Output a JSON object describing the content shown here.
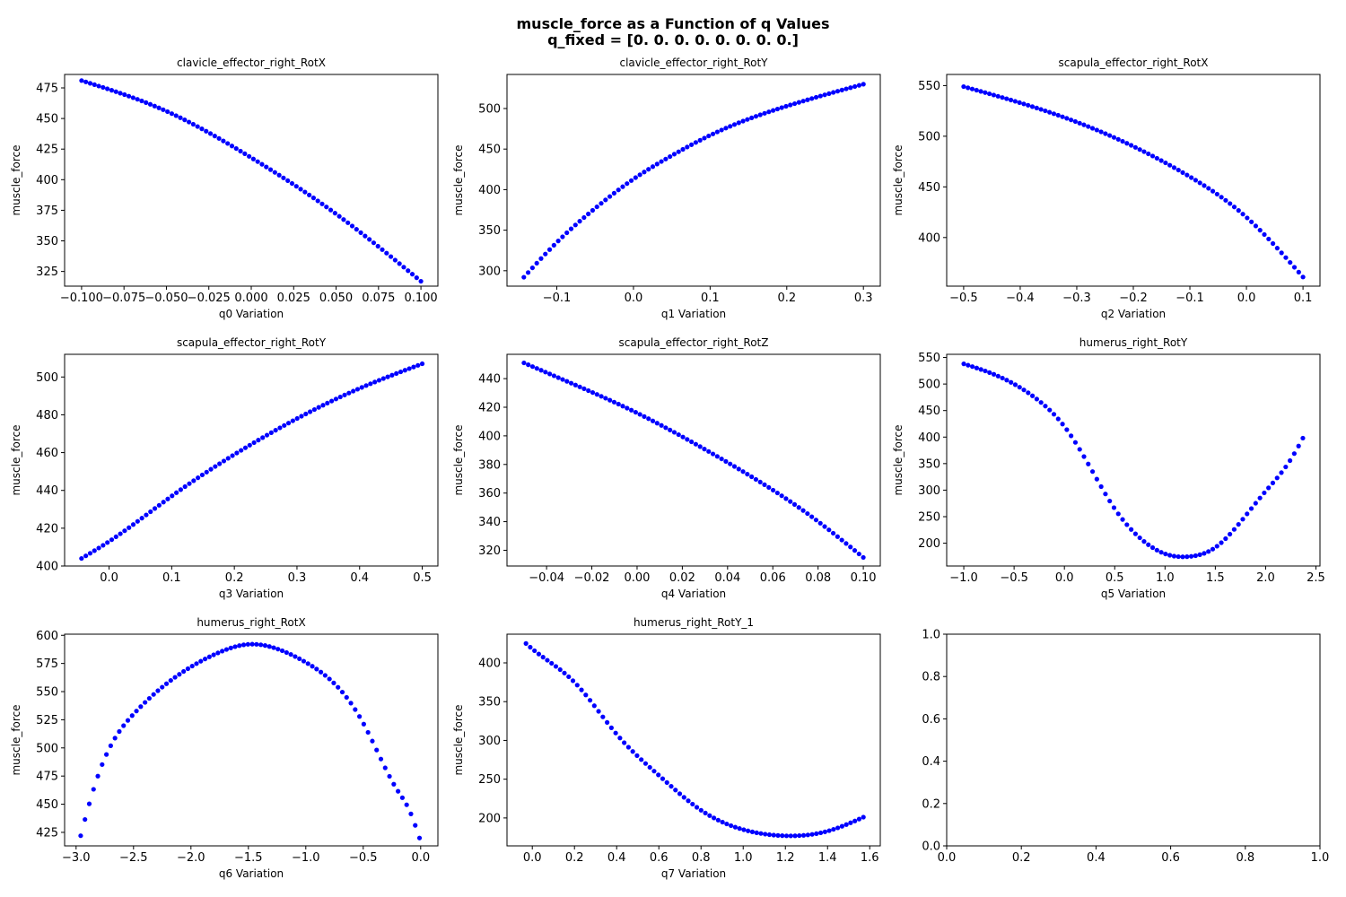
{
  "figure": {
    "title": "muscle_force as a Function of q Values",
    "subtitle": "q_fixed = [0. 0. 0. 0. 0. 0. 0. 0.]",
    "marker_color": "#0000ff"
  },
  "chart_data": [
    {
      "type": "scatter",
      "title": "clavicle_effector_right_RotX",
      "xlabel": "q0 Variation",
      "ylabel": "muscle_force",
      "xlim": [
        -0.11,
        0.11
      ],
      "ylim": [
        313,
        486
      ],
      "xticks": [
        -0.1,
        -0.075,
        -0.05,
        -0.025,
        0.0,
        0.025,
        0.05,
        0.075,
        0.1
      ],
      "xtick_labels": [
        "−0.100",
        "−0.075",
        "−0.050",
        "−0.025",
        "0.000",
        "0.025",
        "0.050",
        "0.075",
        "0.100"
      ],
      "yticks": [
        325,
        350,
        375,
        400,
        425,
        450,
        475
      ],
      "ytick_labels": [
        "325",
        "350",
        "375",
        "400",
        "425",
        "450",
        "475"
      ],
      "curve": {
        "x_range": [
          -0.1,
          0.1
        ],
        "n_points": 80,
        "x": [
          -0.1,
          -0.05,
          0.0,
          0.05,
          0.1
        ],
        "y": [
          481,
          456,
          418,
          372,
          317
        ]
      }
    },
    {
      "type": "scatter",
      "title": "clavicle_effector_right_RotY",
      "xlabel": "q1 Variation",
      "ylabel": "muscle_force",
      "xlim": [
        -0.165,
        0.322
      ],
      "ylim": [
        281,
        542
      ],
      "xticks": [
        -0.1,
        0.0,
        0.1,
        0.2,
        0.3
      ],
      "xtick_labels": [
        "−0.1",
        "0.0",
        "0.1",
        "0.2",
        "0.3"
      ],
      "yticks": [
        300,
        350,
        400,
        450,
        500
      ],
      "ytick_labels": [
        "300",
        "350",
        "400",
        "450",
        "500"
      ],
      "curve": {
        "x_range": [
          -0.143,
          0.3
        ],
        "n_points": 80,
        "x": [
          -0.143,
          -0.1,
          -0.05,
          0.0,
          0.05,
          0.1,
          0.15,
          0.2,
          0.25,
          0.3
        ],
        "y": [
          292,
          335,
          377,
          413,
          442,
          467,
          487,
          503,
          517,
          530
        ]
      }
    },
    {
      "type": "scatter",
      "title": "scapula_effector_right_RotX",
      "xlabel": "q2 Variation",
      "ylabel": "muscle_force",
      "xlim": [
        -0.53,
        0.13
      ],
      "ylim": [
        352,
        561
      ],
      "xticks": [
        -0.5,
        -0.4,
        -0.3,
        -0.2,
        -0.1,
        0.0,
        0.1
      ],
      "xtick_labels": [
        "−0.5",
        "−0.4",
        "−0.3",
        "−0.2",
        "−0.1",
        "0.0",
        "0.1"
      ],
      "yticks": [
        400,
        450,
        500,
        550
      ],
      "ytick_labels": [
        "400",
        "450",
        "500",
        "550"
      ],
      "curve": {
        "x_range": [
          -0.5,
          0.1
        ],
        "n_points": 80,
        "x": [
          -0.5,
          -0.4,
          -0.3,
          -0.2,
          -0.1,
          0.0,
          0.1
        ],
        "y": [
          549,
          533,
          514,
          490,
          460,
          420,
          361
        ]
      }
    },
    {
      "type": "scatter",
      "title": "scapula_effector_right_RotY",
      "xlabel": "q3 Variation",
      "ylabel": "muscle_force",
      "xlim": [
        -0.071,
        0.525
      ],
      "ylim": [
        400,
        512
      ],
      "xticks": [
        0.0,
        0.1,
        0.2,
        0.3,
        0.4,
        0.5
      ],
      "xtick_labels": [
        "0.0",
        "0.1",
        "0.2",
        "0.3",
        "0.4",
        "0.5"
      ],
      "yticks": [
        400,
        420,
        440,
        460,
        480,
        500
      ],
      "ytick_labels": [
        "400",
        "420",
        "440",
        "460",
        "480",
        "500"
      ],
      "curve": {
        "x_range": [
          -0.044,
          0.5
        ],
        "n_points": 80,
        "x": [
          -0.044,
          0.0,
          0.1,
          0.2,
          0.3,
          0.4,
          0.5
        ],
        "y": [
          404,
          413,
          437,
          459,
          478,
          494,
          507
        ]
      }
    },
    {
      "type": "scatter",
      "title": "scapula_effector_right_RotZ",
      "xlabel": "q4 Variation",
      "ylabel": "muscle_force",
      "xlim": [
        -0.0575,
        0.1075
      ],
      "ylim": [
        309,
        457
      ],
      "xticks": [
        -0.04,
        -0.02,
        0.0,
        0.02,
        0.04,
        0.06,
        0.08,
        0.1
      ],
      "xtick_labels": [
        "−0.04",
        "−0.02",
        "0.00",
        "0.02",
        "0.04",
        "0.06",
        "0.08",
        "0.10"
      ],
      "yticks": [
        320,
        340,
        360,
        380,
        400,
        420,
        440
      ],
      "ytick_labels": [
        "320",
        "340",
        "360",
        "380",
        "400",
        "420",
        "440"
      ],
      "curve": {
        "x_range": [
          -0.05,
          0.1
        ],
        "n_points": 80,
        "x": [
          -0.05,
          -0.025,
          0.0,
          0.025,
          0.05,
          0.075,
          0.1
        ],
        "y": [
          451,
          434,
          416,
          395,
          372,
          346,
          315
        ]
      }
    },
    {
      "type": "scatter",
      "title": "humerus_right_RotY",
      "xlabel": "q5 Variation",
      "ylabel": "muscle_force",
      "xlim": [
        -1.17,
        2.54
      ],
      "ylim": [
        157,
        556
      ],
      "xticks": [
        -1.0,
        -0.5,
        0.0,
        0.5,
        1.0,
        1.5,
        2.0,
        2.5
      ],
      "xtick_labels": [
        "−1.0",
        "−0.5",
        "0.0",
        "0.5",
        "1.0",
        "1.5",
        "2.0",
        "2.5"
      ],
      "yticks": [
        200,
        250,
        300,
        350,
        400,
        450,
        500,
        550
      ],
      "ytick_labels": [
        "200",
        "250",
        "300",
        "350",
        "400",
        "450",
        "500",
        "550"
      ],
      "curve": {
        "x_range": [
          -1.0,
          2.37
        ],
        "n_points": 80,
        "x": [
          -1.0,
          -0.75,
          -0.5,
          -0.25,
          0.0,
          0.25,
          0.5,
          0.75,
          1.0,
          1.25,
          1.5,
          1.75,
          2.0,
          2.25,
          2.37
        ],
        "y": [
          538,
          522,
          500,
          468,
          420,
          345,
          265,
          210,
          180,
          175,
          192,
          240,
          298,
          358,
          398
        ]
      }
    },
    {
      "type": "scatter",
      "title": "humerus_right_RotX",
      "xlabel": "q6 Variation",
      "ylabel": "muscle_force",
      "xlim": [
        -3.1,
        0.15
      ],
      "ylim": [
        413,
        601
      ],
      "xticks": [
        -3.0,
        -2.5,
        -2.0,
        -1.5,
        -1.0,
        -0.5,
        0.0
      ],
      "xtick_labels": [
        "−3.0",
        "−2.5",
        "−2.0",
        "−1.5",
        "−1.0",
        "−0.5",
        "0.0"
      ],
      "yticks": [
        425,
        450,
        475,
        500,
        525,
        550,
        575,
        600
      ],
      "ytick_labels": [
        "425",
        "450",
        "475",
        "500",
        "525",
        "550",
        "575",
        "600"
      ],
      "curve": {
        "x_range": [
          -2.96,
          -0.01
        ],
        "n_points": 80,
        "x": [
          -2.96,
          -2.9,
          -2.8,
          -2.5,
          -2.0,
          -1.75,
          -1.5,
          -1.25,
          -1.0,
          -0.5,
          -0.2,
          -0.1,
          -0.01
        ],
        "y": [
          422,
          445,
          478,
          530,
          572,
          585,
          592,
          588,
          576,
          522,
          462,
          445,
          420
        ]
      }
    },
    {
      "type": "scatter",
      "title": "humerus_right_RotY_1",
      "xlabel": "q7 Variation",
      "ylabel": "muscle_force",
      "xlim": [
        -0.12,
        1.65
      ],
      "ylim": [
        164,
        437
      ],
      "xticks": [
        0.0,
        0.2,
        0.4,
        0.6,
        0.8,
        1.0,
        1.2,
        1.4,
        1.6
      ],
      "xtick_labels": [
        "0.0",
        "0.2",
        "0.4",
        "0.6",
        "0.8",
        "1.0",
        "1.2",
        "1.4",
        "1.6"
      ],
      "yticks": [
        200,
        250,
        300,
        350,
        400
      ],
      "ytick_labels": [
        "200",
        "250",
        "300",
        "350",
        "400"
      ],
      "curve": {
        "x_range": [
          -0.03,
          1.57
        ],
        "n_points": 80,
        "x": [
          -0.03,
          0.0,
          0.2,
          0.4,
          0.6,
          0.8,
          1.0,
          1.2,
          1.4,
          1.57
        ],
        "y": [
          425,
          418,
          375,
          308,
          255,
          210,
          185,
          177,
          183,
          201
        ]
      }
    },
    {
      "type": "scatter",
      "title": "",
      "xlabel": "",
      "ylabel": "",
      "xlim": [
        0.0,
        1.0
      ],
      "ylim": [
        0.0,
        1.0
      ],
      "xticks": [
        0.0,
        0.2,
        0.4,
        0.6,
        0.8,
        1.0
      ],
      "xtick_labels": [
        "0.0",
        "0.2",
        "0.4",
        "0.6",
        "0.8",
        "1.0"
      ],
      "yticks": [
        0.0,
        0.2,
        0.4,
        0.6,
        0.8,
        1.0
      ],
      "ytick_labels": [
        "0.0",
        "0.2",
        "0.4",
        "0.6",
        "0.8",
        "1.0"
      ],
      "curve": null
    }
  ]
}
